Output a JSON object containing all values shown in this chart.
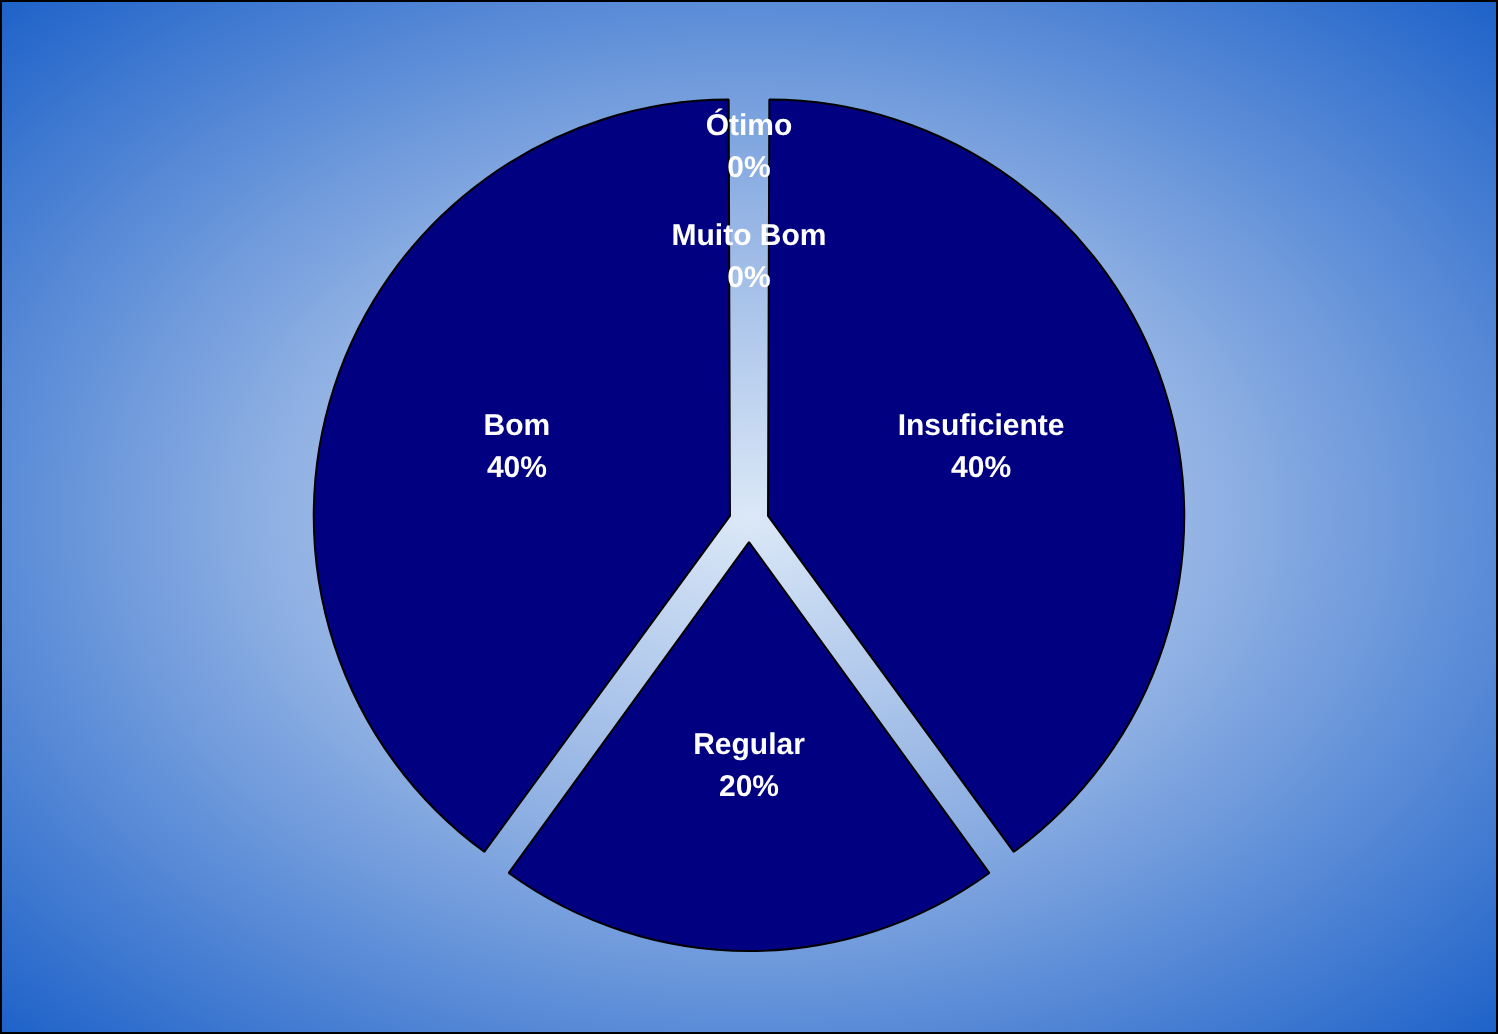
{
  "chart_data": {
    "type": "pie",
    "categories": [
      "Insuficiente",
      "Regular",
      "Bom",
      "Muito Bom",
      "Ótimo"
    ],
    "values": [
      40,
      20,
      40,
      0,
      0
    ],
    "colors": [
      "#000080",
      "#000080",
      "#000080",
      "#000080",
      "#000080"
    ],
    "value_labels": [
      "40%",
      "20%",
      "40%",
      "0%",
      "0%"
    ],
    "legend": false
  }
}
